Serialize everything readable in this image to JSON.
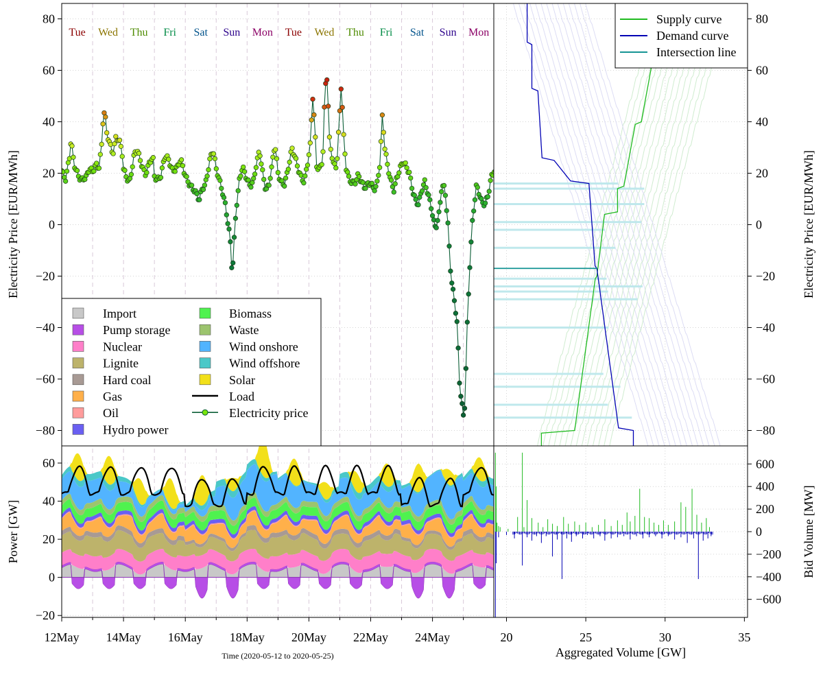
{
  "chart_data": [
    {
      "type": "line",
      "panel": "price",
      "ylabel": "Electricity Price [EUR/MWh]",
      "ylim": [
        -86,
        86
      ],
      "yticks": [
        -80,
        -60,
        -40,
        -20,
        0,
        20,
        40,
        60,
        80
      ],
      "grid": true,
      "day_labels": [
        {
          "label": "Tue",
          "day": 0.5,
          "color": "#8b0000"
        },
        {
          "label": "Wed",
          "day": 1.5,
          "color": "#8b7500"
        },
        {
          "label": "Thu",
          "day": 2.5,
          "color": "#4e8b00"
        },
        {
          "label": "Fri",
          "day": 3.5,
          "color": "#008b45"
        },
        {
          "label": "Sat",
          "day": 4.5,
          "color": "#00528b"
        },
        {
          "label": "Sun",
          "day": 5.5,
          "color": "#2b008b"
        },
        {
          "label": "Mon",
          "day": 6.5,
          "color": "#8b0066"
        },
        {
          "label": "Tue",
          "day": 7.5,
          "color": "#8b0000"
        },
        {
          "label": "Wed",
          "day": 8.5,
          "color": "#8b7500"
        },
        {
          "label": "Thu",
          "day": 9.5,
          "color": "#4e8b00"
        },
        {
          "label": "Fri",
          "day": 10.5,
          "color": "#008b45"
        },
        {
          "label": "Sat",
          "day": 11.5,
          "color": "#00528b"
        },
        {
          "label": "Sun",
          "day": 12.5,
          "color": "#2b008b"
        },
        {
          "label": "Mon",
          "day": 13.5,
          "color": "#8b0066"
        }
      ],
      "price_keypoints": [
        [
          0.0,
          21
        ],
        [
          0.05,
          19
        ],
        [
          0.13,
          17
        ],
        [
          0.25,
          26
        ],
        [
          0.3,
          33
        ],
        [
          0.4,
          24
        ],
        [
          0.55,
          19
        ],
        [
          0.65,
          17
        ],
        [
          0.8,
          18
        ],
        [
          0.9,
          22
        ],
        [
          1.0,
          21
        ],
        [
          1.1,
          24
        ],
        [
          1.2,
          22
        ],
        [
          1.3,
          31
        ],
        [
          1.35,
          43.5
        ],
        [
          1.4,
          43
        ],
        [
          1.45,
          35.5
        ],
        [
          1.55,
          32
        ],
        [
          1.65,
          28
        ],
        [
          1.75,
          34
        ],
        [
          1.85,
          33
        ],
        [
          1.95,
          28
        ],
        [
          2.0,
          21
        ],
        [
          2.1,
          18
        ],
        [
          2.2,
          17
        ],
        [
          2.35,
          28
        ],
        [
          2.45,
          29
        ],
        [
          2.55,
          24
        ],
        [
          2.7,
          19
        ],
        [
          2.85,
          25
        ],
        [
          2.95,
          27
        ],
        [
          3.0,
          19
        ],
        [
          3.1,
          17
        ],
        [
          3.2,
          18
        ],
        [
          3.35,
          27
        ],
        [
          3.45,
          26
        ],
        [
          3.6,
          21
        ],
        [
          3.75,
          22
        ],
        [
          3.85,
          25
        ],
        [
          3.95,
          21
        ],
        [
          4.05,
          18
        ],
        [
          4.15,
          16
        ],
        [
          4.3,
          13
        ],
        [
          4.45,
          9
        ],
        [
          4.55,
          14
        ],
        [
          4.65,
          16
        ],
        [
          4.8,
          26
        ],
        [
          4.9,
          29
        ],
        [
          5.0,
          21
        ],
        [
          5.1,
          17
        ],
        [
          5.2,
          13
        ],
        [
          5.3,
          8
        ],
        [
          5.38,
          1
        ],
        [
          5.45,
          -5
        ],
        [
          5.5,
          -16
        ],
        [
          5.55,
          -15
        ],
        [
          5.6,
          -2
        ],
        [
          5.65,
          6
        ],
        [
          5.75,
          17
        ],
        [
          5.85,
          23
        ],
        [
          6.0,
          18
        ],
        [
          6.1,
          15
        ],
        [
          6.2,
          16
        ],
        [
          6.3,
          23
        ],
        [
          6.4,
          29
        ],
        [
          6.5,
          21
        ],
        [
          6.6,
          14
        ],
        [
          6.7,
          15
        ],
        [
          6.8,
          22
        ],
        [
          6.9,
          31
        ],
        [
          7.0,
          20
        ],
        [
          7.1,
          17
        ],
        [
          7.2,
          16
        ],
        [
          7.3,
          20
        ],
        [
          7.45,
          29
        ],
        [
          7.55,
          26
        ],
        [
          7.65,
          22
        ],
        [
          7.75,
          19
        ],
        [
          7.85,
          17
        ],
        [
          7.95,
          23
        ],
        [
          8.05,
          31
        ],
        [
          8.12,
          50
        ],
        [
          8.18,
          40
        ],
        [
          8.25,
          23
        ],
        [
          8.35,
          22
        ],
        [
          8.45,
          26
        ],
        [
          8.5,
          45
        ],
        [
          8.55,
          56.5
        ],
        [
          8.6,
          57
        ],
        [
          8.65,
          34
        ],
        [
          8.72,
          28
        ],
        [
          8.8,
          23
        ],
        [
          8.9,
          23
        ],
        [
          8.95,
          34
        ],
        [
          9.0,
          44.5
        ],
        [
          9.05,
          56
        ],
        [
          9.08,
          47
        ],
        [
          9.12,
          35
        ],
        [
          9.2,
          22
        ],
        [
          9.3,
          17
        ],
        [
          9.4,
          16
        ],
        [
          9.5,
          17
        ],
        [
          9.6,
          20
        ],
        [
          9.7,
          17
        ],
        [
          9.8,
          14
        ],
        [
          9.9,
          15
        ],
        [
          10.0,
          16
        ],
        [
          10.1,
          14
        ],
        [
          10.2,
          16
        ],
        [
          10.3,
          24
        ],
        [
          10.38,
          43
        ],
        [
          10.45,
          30
        ],
        [
          10.55,
          22
        ],
        [
          10.65,
          17
        ],
        [
          10.75,
          14
        ],
        [
          10.85,
          19
        ],
        [
          10.95,
          22
        ],
        [
          11.05,
          24
        ],
        [
          11.15,
          22
        ],
        [
          11.25,
          20
        ],
        [
          11.35,
          14
        ],
        [
          11.45,
          10
        ],
        [
          11.55,
          8
        ],
        [
          11.65,
          13
        ],
        [
          11.75,
          16
        ],
        [
          11.85,
          12
        ],
        [
          11.95,
          8
        ],
        [
          12.05,
          1
        ],
        [
          12.1,
          -1
        ],
        [
          12.2,
          3
        ],
        [
          12.3,
          14
        ],
        [
          12.4,
          14
        ],
        [
          12.5,
          0
        ],
        [
          12.6,
          -20
        ],
        [
          12.65,
          -24
        ],
        [
          12.72,
          -30
        ],
        [
          12.8,
          -39
        ],
        [
          12.88,
          -63
        ],
        [
          12.95,
          -70
        ],
        [
          13.0,
          -75
        ],
        [
          13.05,
          -70
        ],
        [
          13.12,
          -40
        ],
        [
          13.2,
          -17
        ],
        [
          13.28,
          0
        ],
        [
          13.35,
          8
        ],
        [
          13.42,
          15
        ],
        [
          13.5,
          12
        ],
        [
          13.6,
          8
        ],
        [
          13.7,
          8
        ],
        [
          13.8,
          12
        ],
        [
          13.9,
          19
        ],
        [
          14.0,
          21
        ],
        [
          14.1,
          18
        ],
        [
          14.2,
          14
        ],
        [
          14.3,
          17
        ],
        [
          14.4,
          22
        ],
        [
          14.48,
          26
        ],
        [
          14.53,
          38
        ],
        [
          14.56,
          35
        ],
        [
          14.6,
          26
        ]
      ],
      "price_color_stops": [
        {
          "value": -80,
          "color": "#0b5e36"
        },
        {
          "value": -10,
          "color": "#0e7a3a"
        },
        {
          "value": 10,
          "color": "#2db52d"
        },
        {
          "value": 22,
          "color": "#7ae60c"
        },
        {
          "value": 30,
          "color": "#c8f028"
        },
        {
          "value": 38,
          "color": "#e0d418"
        },
        {
          "value": 48,
          "color": "#d23210"
        },
        {
          "value": 60,
          "color": "#c41a10"
        }
      ]
    },
    {
      "type": "area",
      "panel": "generation",
      "ylabel": "Power [GW]",
      "ylim": [
        -21,
        69
      ],
      "yticks": [
        -20,
        0,
        20,
        40,
        60
      ],
      "grid": true,
      "x_start": "2020-05-12",
      "x_end": "2020-05-25",
      "xticks": [
        {
          "label": "12May",
          "day": 0
        },
        {
          "label": "14May",
          "day": 2
        },
        {
          "label": "16May",
          "day": 4
        },
        {
          "label": "18May",
          "day": 6
        },
        {
          "label": "20May",
          "day": 8
        },
        {
          "label": "22May",
          "day": 10
        },
        {
          "label": "24May",
          "day": 12
        }
      ],
      "xlabel": "Time (2020-05-12 to 2020-05-25)",
      "series": [
        {
          "name": "Import",
          "color": "#c8c8c8"
        },
        {
          "name": "Pump storage",
          "color": "#b74ee6"
        },
        {
          "name": "Nuclear",
          "color": "#ff7fc9"
        },
        {
          "name": "Lignite",
          "color": "#bdb36b"
        },
        {
          "name": "Hard coal",
          "color": "#a89a94"
        },
        {
          "name": "Gas",
          "color": "#ffb04a"
        },
        {
          "name": "Oil",
          "color": "#ff9c9c"
        },
        {
          "name": "Hydro power",
          "color": "#6a5ff2"
        },
        {
          "name": "Biomass",
          "color": "#4ff24f"
        },
        {
          "name": "Waste",
          "color": "#9cc46e"
        },
        {
          "name": "Wind onshore",
          "color": "#52b4ff"
        },
        {
          "name": "Wind offshore",
          "color": "#4ac8c8"
        },
        {
          "name": "Solar",
          "color": "#f2e01a"
        }
      ],
      "line_series": [
        {
          "name": "Load",
          "color": "#000000"
        },
        {
          "name": "Electricity price",
          "color": "#0b5e36",
          "marker_fill": "#7ae60c"
        }
      ]
    },
    {
      "type": "line",
      "panel": "bid-curves",
      "ylabel": "Electricity Price [EUR/MWh]",
      "ylim": [
        -86,
        86
      ],
      "series": [
        {
          "name": "Supply curve",
          "color": "#1fba1f"
        },
        {
          "name": "Demand curve",
          "color": "#0000b4"
        },
        {
          "name": "Intersection line",
          "color": "#159494"
        }
      ],
      "highlight_price": -17,
      "other_intersections": [
        16,
        14,
        8,
        1,
        -2,
        -9,
        -21,
        -24,
        -26,
        -29,
        -40,
        -58,
        -63,
        -70,
        -75
      ]
    },
    {
      "type": "bar",
      "panel": "bid-volume",
      "ylabel": "Bid Volume [MW]",
      "xlabel": "Aggregated Volume [GW]",
      "xlim": [
        19.2,
        35.2
      ],
      "xticks": [
        20,
        25,
        30,
        35
      ],
      "ylim": [
        -760,
        760
      ],
      "yticks": [
        -600,
        -400,
        -200,
        0,
        200,
        400,
        600
      ],
      "supply_bars": [
        [
          19.3,
          700
        ],
        [
          19.35,
          400
        ],
        [
          19.4,
          80
        ],
        [
          19.5,
          50
        ],
        [
          19.6,
          40
        ],
        [
          20.1,
          25
        ],
        [
          20.7,
          130
        ],
        [
          21.0,
          700
        ],
        [
          21.1,
          40
        ],
        [
          21.3,
          280
        ],
        [
          21.6,
          120
        ],
        [
          22.0,
          80
        ],
        [
          22.3,
          40
        ],
        [
          22.6,
          110
        ],
        [
          22.9,
          70
        ],
        [
          23.2,
          50
        ],
        [
          23.6,
          130
        ],
        [
          23.9,
          70
        ],
        [
          24.3,
          90
        ],
        [
          24.6,
          60
        ],
        [
          25.0,
          80
        ],
        [
          25.4,
          40
        ],
        [
          25.8,
          60
        ],
        [
          26.2,
          110
        ],
        [
          26.6,
          50
        ],
        [
          27.0,
          100
        ],
        [
          27.3,
          60
        ],
        [
          27.6,
          170
        ],
        [
          27.8,
          90
        ],
        [
          28.1,
          140
        ],
        [
          28.4,
          380
        ],
        [
          28.7,
          130
        ],
        [
          29.0,
          120
        ],
        [
          29.3,
          80
        ],
        [
          29.6,
          60
        ],
        [
          29.9,
          100
        ],
        [
          30.2,
          60
        ],
        [
          30.6,
          90
        ],
        [
          31.0,
          260
        ],
        [
          31.3,
          220
        ],
        [
          31.7,
          380
        ],
        [
          32.0,
          150
        ],
        [
          32.3,
          80
        ],
        [
          32.6,
          120
        ],
        [
          32.8,
          40
        ]
      ],
      "demand_bars": [
        [
          19.3,
          -760
        ],
        [
          19.35,
          -280
        ],
        [
          19.5,
          -50
        ],
        [
          20.0,
          -30
        ],
        [
          20.5,
          -60
        ],
        [
          21.0,
          -300
        ],
        [
          21.3,
          -50
        ],
        [
          21.6,
          -80
        ],
        [
          21.9,
          -40
        ],
        [
          22.2,
          -100
        ],
        [
          22.5,
          -40
        ],
        [
          22.9,
          -220
        ],
        [
          23.2,
          -70
        ],
        [
          23.5,
          -420
        ],
        [
          23.8,
          -60
        ],
        [
          24.1,
          -90
        ],
        [
          24.4,
          -40
        ],
        [
          24.8,
          -60
        ],
        [
          25.1,
          -30
        ],
        [
          25.5,
          -60
        ],
        [
          25.9,
          -40
        ],
        [
          26.2,
          -80
        ],
        [
          26.6,
          -60
        ],
        [
          27.0,
          -50
        ],
        [
          27.4,
          -40
        ],
        [
          27.8,
          -70
        ],
        [
          28.2,
          -40
        ],
        [
          28.6,
          -60
        ],
        [
          29.0,
          -50
        ],
        [
          29.4,
          -40
        ],
        [
          29.8,
          -60
        ],
        [
          30.2,
          -40
        ],
        [
          30.6,
          -70
        ],
        [
          31.0,
          -50
        ],
        [
          31.4,
          -100
        ],
        [
          31.8,
          -60
        ],
        [
          32.1,
          -420
        ],
        [
          32.4,
          -80
        ],
        [
          32.7,
          -60
        ],
        [
          32.9,
          -40
        ]
      ]
    }
  ]
}
